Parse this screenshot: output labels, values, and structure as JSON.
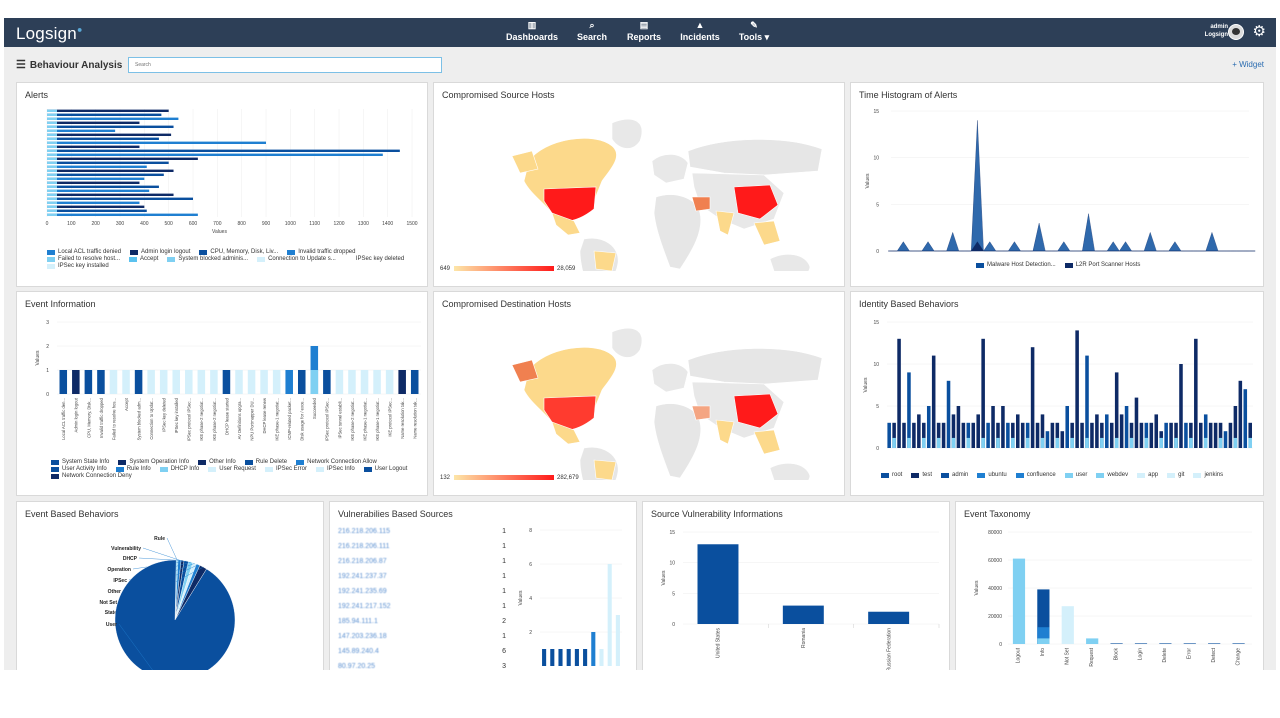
{
  "brand": "Logsign",
  "nav": [
    {
      "icon": "chart-icon",
      "label": "Dashboards"
    },
    {
      "icon": "search-icon",
      "label": "Search"
    },
    {
      "icon": "report-icon",
      "label": "Reports"
    },
    {
      "icon": "flame-icon",
      "label": "Incidents"
    },
    {
      "icon": "wrench-icon",
      "label": "Tools ▾"
    }
  ],
  "user": {
    "name": "admin",
    "org": "Logsign"
  },
  "page": {
    "title": "Behaviour Analysis",
    "search_placeholder": "Search",
    "add_widget": "+ Widget"
  },
  "colors": {
    "dark_blue": "#0a4f9e",
    "mid_blue": "#1f7fd1",
    "light_blue": "#7fd0f2",
    "pale_blue": "#d4f0fb",
    "navy": "#0e2a66",
    "map_hot": "#ff1a1a",
    "map_warm": "#fcd98b"
  },
  "panels": {
    "alerts": {
      "title": "Alerts",
      "legend": [
        "Local ACL traffic denied",
        "Admin login logout",
        "CPU, Memory, Disk, Liv...",
        "Invalid traffic dropped",
        "Failed to resolve host...",
        "Accept",
        "System blocked adminis...",
        "Connection to Update s...",
        "IPSec key deleted",
        "IPSec key installed"
      ]
    },
    "compromised_source": {
      "title": "Compromised Source Hosts",
      "min": "649",
      "max": "28,059"
    },
    "time_histogram": {
      "title": "Time Histogram of Alerts",
      "legend": [
        "Malware Host Detection...",
        "L2R Port Scanner Hosts"
      ]
    },
    "event_information": {
      "title": "Event Information",
      "legend": [
        "System State Info",
        "System Operation Info",
        "Other Info",
        "Rule Delete",
        "Network Connection Allow",
        "User Activity Info",
        "Rule Info",
        "DHCP Info",
        "User Request",
        "IPSec Error",
        "IPSec Info",
        "User Logout",
        "Network Connection Deny"
      ]
    },
    "compromised_destination": {
      "title": "Compromised Destination Hosts",
      "min": "132",
      "max": "282,679"
    },
    "identity_based": {
      "title": "Identity Based Behaviors",
      "legend": [
        "root",
        "test",
        "admin",
        "ubuntu",
        "confluence",
        "user",
        "webdev",
        "app",
        "git",
        "jenkins"
      ]
    },
    "event_based": {
      "title": "Event Based Behaviors"
    },
    "vulnerabilities_sources": {
      "title": "Vulnerabilies Based Sources",
      "rows": [
        {
          "ip": "216.218.206.115",
          "count": "1"
        },
        {
          "ip": "216.218.206.111",
          "count": "1"
        },
        {
          "ip": "216.218.206.87",
          "count": "1"
        },
        {
          "ip": "192.241.237.37",
          "count": "1"
        },
        {
          "ip": "192.241.235.69",
          "count": "1"
        },
        {
          "ip": "192.241.217.152",
          "count": "1"
        },
        {
          "ip": "185.94.111.1",
          "count": "2"
        },
        {
          "ip": "147.203.236.18",
          "count": "1"
        },
        {
          "ip": "145.89.240.4",
          "count": "6"
        },
        {
          "ip": "80.97.20.25",
          "count": "3"
        }
      ]
    },
    "source_vulnerability": {
      "title": "Source Vulnerability Informations"
    },
    "event_taxonomy": {
      "title": "Event Taxonomy"
    }
  },
  "chart_data": [
    {
      "type": "bar",
      "orientation": "horizontal",
      "title": "Alerts",
      "xlabel": "Values",
      "xlim": [
        0,
        1500
      ],
      "x_ticks": [
        0,
        100,
        200,
        300,
        400,
        500,
        600,
        700,
        800,
        900,
        1000,
        1100,
        1200,
        1300,
        1400,
        1500
      ],
      "values": [
        500,
        470,
        540,
        380,
        520,
        280,
        510,
        460,
        900,
        380,
        1450,
        1380,
        620,
        500,
        410,
        520,
        480,
        400,
        380,
        460,
        420,
        520,
        600,
        380,
        400,
        410,
        620
      ]
    },
    {
      "type": "area",
      "title": "Time Histogram of Alerts",
      "ylabel": "Values",
      "ylim": [
        0,
        15
      ],
      "y_ticks": [
        0,
        5,
        10,
        15
      ],
      "series": [
        {
          "name": "Malware Host Detection...",
          "values": [
            0,
            1,
            0,
            1,
            0,
            2,
            0,
            14,
            1,
            0,
            1,
            0,
            3,
            0,
            1,
            0,
            4,
            0,
            1,
            1,
            0,
            2,
            0,
            1,
            0,
            0,
            2,
            0,
            0,
            0
          ]
        },
        {
          "name": "L2R Port Scanner Hosts",
          "values": [
            0,
            0,
            0,
            0,
            0,
            0,
            0,
            1,
            0,
            0,
            0,
            0,
            0,
            0,
            0,
            0,
            0,
            0,
            0,
            0,
            0,
            0,
            0,
            0,
            0,
            0,
            0,
            0,
            0,
            0
          ]
        }
      ]
    },
    {
      "type": "bar",
      "title": "Event Information",
      "ylabel": "Values",
      "ylim": [
        0,
        3
      ],
      "y_ticks": [
        0,
        1,
        2,
        3
      ],
      "categories": [
        "Local ACL traffic den...",
        "Admin login logout",
        "CPU, Memory, Disk...",
        "Invalid traffic dropped",
        "Failed to resolve hos...",
        "Accept",
        "System blocked adm...",
        "Connection to Updat...",
        "IPSec key deleted",
        "IPSec key installed",
        "IPSec protocol IPSec...",
        "IKE phase-2 negotiat...",
        "IKE phase-2 negotiat...",
        "DHCP lease started",
        "AV Definitions upgra...",
        "NPU Portmapper DU...",
        "DHCP lease renew",
        "IKE phase-1 negotiat...",
        "ICMP-related packet...",
        "Disk usage for / exce...",
        "Succeeded",
        "IPSec protocol IPSec...",
        "IPSec tunnel establi...",
        "IKE phase-2 negotiat...",
        "IKE phase-1 negotiat...",
        "IKE phase-1 negotiat...",
        "IKE protocol IPSec...",
        "Name resolution tak...",
        "Name resolution tak..."
      ],
      "values": [
        1,
        1,
        1,
        1,
        1,
        1,
        1,
        1,
        1,
        1,
        1,
        1,
        1,
        1,
        1,
        1,
        1,
        1,
        1,
        1,
        2,
        1,
        1,
        1,
        1,
        1,
        1,
        1,
        1
      ]
    },
    {
      "type": "bar",
      "title": "Identity Based Behaviors",
      "ylabel": "Values",
      "ylim": [
        0,
        15
      ],
      "y_ticks": [
        0,
        5,
        10,
        15
      ],
      "values": [
        3,
        3,
        13,
        3,
        9,
        3,
        4,
        3,
        5,
        11,
        3,
        3,
        8,
        4,
        5,
        3,
        3,
        3,
        4,
        13,
        3,
        5,
        3,
        5,
        3,
        3,
        4,
        3,
        3,
        12,
        3,
        4,
        2,
        3,
        3,
        2,
        5,
        3,
        14,
        3,
        11,
        3,
        4,
        3,
        4,
        3,
        9,
        4,
        5,
        3,
        6,
        3,
        3,
        3,
        4,
        2,
        3,
        3,
        3,
        10,
        3,
        3,
        13,
        3,
        4,
        3,
        3,
        3,
        2,
        3,
        5,
        8,
        7,
        3
      ]
    },
    {
      "type": "pie",
      "title": "Event Based Behaviors",
      "categories": [
        "Rule",
        "Vulnerability",
        "DHCP",
        "Operation",
        "IPSec",
        "Other",
        "Not Set",
        "State",
        "User"
      ],
      "values": [
        0.5,
        0.8,
        0.8,
        1.2,
        1.2,
        1,
        1,
        2,
        91.5
      ]
    },
    {
      "type": "bar",
      "title": "Vulnerabilies Based Sources",
      "ylabel": "Values",
      "ylim": [
        0,
        8
      ],
      "y_ticks": [
        2,
        4,
        6,
        8
      ],
      "values": [
        1,
        1,
        1,
        1,
        1,
        1,
        2,
        1,
        6,
        3
      ]
    },
    {
      "type": "bar",
      "title": "Source Vulnerability Informations",
      "ylabel": "Values",
      "ylim": [
        0,
        15
      ],
      "y_ticks": [
        0,
        5,
        10,
        15
      ],
      "categories": [
        "United States",
        "Romania",
        "Russian Federation"
      ],
      "values": [
        13,
        3,
        2
      ]
    },
    {
      "type": "bar",
      "title": "Event Taxonomy",
      "ylabel": "Values",
      "ylim": [
        0,
        80000
      ],
      "y_ticks": [
        0,
        20000,
        40000,
        60000,
        80000
      ],
      "categories": [
        "Logout",
        "Info",
        "Not Set",
        "Request",
        "Block",
        "Login",
        "Delete",
        "Error",
        "Detect",
        "Change"
      ],
      "values": [
        61000,
        39000,
        27000,
        4000,
        300,
        200,
        200,
        100,
        100,
        100
      ]
    }
  ]
}
